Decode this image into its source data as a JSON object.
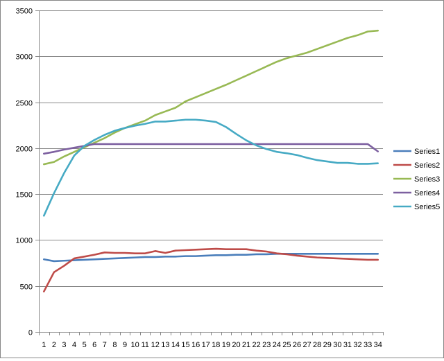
{
  "chart_data": {
    "type": "line",
    "title": "",
    "xlabel": "",
    "ylabel": "",
    "x": [
      1,
      2,
      3,
      4,
      5,
      6,
      7,
      8,
      9,
      10,
      11,
      12,
      13,
      14,
      15,
      16,
      17,
      18,
      19,
      20,
      21,
      22,
      23,
      24,
      25,
      26,
      27,
      28,
      29,
      30,
      31,
      32,
      33,
      34
    ],
    "ylim": [
      0,
      3500
    ],
    "yticks": [
      0,
      500,
      1000,
      1500,
      2000,
      2500,
      3000,
      3500
    ],
    "grid": true,
    "legend_position": "right",
    "series": [
      {
        "name": "Series1",
        "color": "#4a7ebb",
        "values": [
          790,
          770,
          775,
          780,
          785,
          790,
          795,
          800,
          805,
          810,
          815,
          815,
          820,
          820,
          825,
          825,
          830,
          835,
          835,
          840,
          840,
          845,
          845,
          850,
          850,
          850,
          850,
          850,
          850,
          850,
          850,
          850,
          850,
          850
        ]
      },
      {
        "name": "Series2",
        "color": "#be4b48",
        "values": [
          440,
          650,
          720,
          800,
          820,
          840,
          865,
          860,
          860,
          855,
          855,
          880,
          860,
          885,
          890,
          895,
          900,
          905,
          900,
          900,
          900,
          885,
          875,
          855,
          845,
          830,
          820,
          810,
          805,
          800,
          795,
          790,
          785,
          785
        ]
      },
      {
        "name": "Series3",
        "color": "#98b954",
        "values": [
          1825,
          1850,
          1910,
          1960,
          2010,
          2060,
          2110,
          2170,
          2220,
          2260,
          2300,
          2360,
          2400,
          2440,
          2510,
          2555,
          2600,
          2645,
          2690,
          2740,
          2790,
          2840,
          2890,
          2940,
          2980,
          3010,
          3040,
          3080,
          3120,
          3160,
          3200,
          3230,
          3270,
          3280
        ]
      },
      {
        "name": "Series4",
        "color": "#7d60a0",
        "values": [
          1940,
          1960,
          1985,
          2005,
          2025,
          2045,
          2045,
          2045,
          2045,
          2045,
          2045,
          2045,
          2045,
          2045,
          2045,
          2045,
          2045,
          2045,
          2045,
          2045,
          2045,
          2045,
          2045,
          2045,
          2045,
          2045,
          2045,
          2045,
          2045,
          2045,
          2045,
          2045,
          2045,
          1965
        ]
      },
      {
        "name": "Series5",
        "color": "#46aac4",
        "values": [
          1265,
          1510,
          1730,
          1920,
          2025,
          2090,
          2145,
          2190,
          2220,
          2245,
          2265,
          2290,
          2290,
          2300,
          2310,
          2310,
          2300,
          2285,
          2230,
          2155,
          2085,
          2030,
          1990,
          1960,
          1945,
          1925,
          1895,
          1870,
          1855,
          1840,
          1840,
          1830,
          1830,
          1835
        ]
      }
    ]
  }
}
